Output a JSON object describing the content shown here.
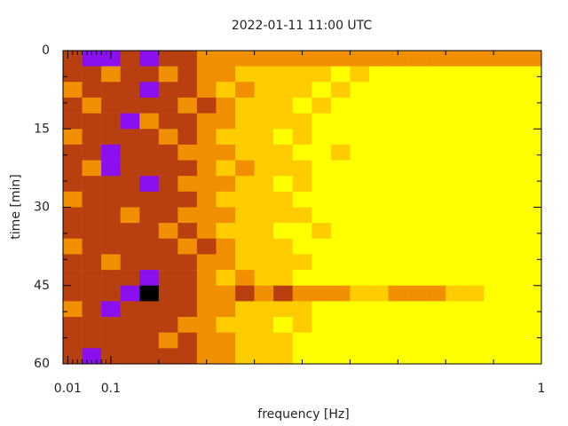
{
  "chart_data": {
    "type": "heatmap",
    "title": "2022-01-11 11:00 UTC",
    "x_label": "frequency [Hz]",
    "y_label": "time [min]",
    "xlim": [
      0,
      1
    ],
    "ylim": [
      0,
      60
    ],
    "y_inverted": true,
    "xticks": [
      0.01,
      0.1,
      1
    ],
    "xminor_ticks": [
      0.02,
      0.03,
      0.04,
      0.05,
      0.06,
      0.07,
      0.08,
      0.09,
      0.2,
      0.3,
      0.4,
      0.5,
      0.6,
      0.7,
      0.8,
      0.9
    ],
    "yticks": [
      0,
      15,
      30,
      45,
      60
    ],
    "yminor_ticks": [
      5,
      10,
      20,
      25,
      35,
      40,
      50,
      55
    ],
    "xbins": [
      0,
      0.04,
      0.08,
      0.12,
      0.16,
      0.2,
      0.24,
      0.28,
      0.32,
      0.36,
      0.4,
      0.44,
      0.48,
      0.52,
      0.56,
      0.6,
      0.64,
      0.68,
      0.72,
      0.76,
      0.8,
      0.84,
      0.88,
      0.92,
      0.96,
      1
    ],
    "ybins": [
      0,
      3,
      6,
      9,
      12,
      15,
      18,
      21,
      24,
      27,
      30,
      33,
      36,
      39,
      42,
      45,
      48,
      51,
      54,
      57,
      60
    ],
    "zlim": [
      0,
      5
    ],
    "colorscale": [
      "#ffff00",
      "#ffcc00",
      "#f09000",
      "#b84010",
      "#8a10f0",
      "#000000"
    ],
    "z": [
      [
        3,
        4,
        4,
        3,
        4,
        3,
        3,
        2,
        2,
        2,
        2,
        2,
        2,
        2,
        2,
        2,
        2,
        2,
        2,
        2,
        2,
        2,
        2,
        2,
        2
      ],
      [
        3,
        3,
        2,
        3,
        3,
        2,
        3,
        2,
        2,
        1,
        1,
        1,
        1,
        1,
        0,
        1,
        0,
        0,
        0,
        0,
        0,
        0,
        0,
        0,
        0
      ],
      [
        2,
        3,
        3,
        3,
        4,
        3,
        3,
        2,
        1,
        2,
        1,
        1,
        1,
        0,
        1,
        0,
        0,
        0,
        0,
        0,
        0,
        0,
        0,
        0,
        0
      ],
      [
        3,
        2,
        3,
        3,
        3,
        3,
        2,
        3,
        2,
        1,
        1,
        1,
        0,
        1,
        0,
        0,
        0,
        0,
        0,
        0,
        0,
        0,
        0,
        0,
        0
      ],
      [
        3,
        3,
        3,
        4,
        2,
        3,
        3,
        2,
        2,
        1,
        1,
        1,
        1,
        0,
        0,
        0,
        0,
        0,
        0,
        0,
        0,
        0,
        0,
        0,
        0
      ],
      [
        2,
        3,
        3,
        3,
        3,
        2,
        3,
        2,
        1,
        1,
        1,
        0,
        1,
        0,
        0,
        0,
        0,
        0,
        0,
        0,
        0,
        0,
        0,
        0,
        0
      ],
      [
        3,
        3,
        4,
        3,
        3,
        3,
        2,
        2,
        2,
        1,
        1,
        1,
        0,
        0,
        1,
        0,
        0,
        0,
        0,
        0,
        0,
        0,
        0,
        0,
        0
      ],
      [
        3,
        2,
        4,
        3,
        3,
        3,
        3,
        2,
        1,
        2,
        1,
        1,
        1,
        0,
        0,
        0,
        0,
        0,
        0,
        0,
        0,
        0,
        0,
        0,
        0
      ],
      [
        3,
        3,
        3,
        3,
        4,
        3,
        2,
        2,
        2,
        1,
        1,
        0,
        1,
        0,
        0,
        0,
        0,
        0,
        0,
        0,
        0,
        0,
        0,
        0,
        0
      ],
      [
        2,
        3,
        3,
        3,
        3,
        3,
        3,
        2,
        1,
        1,
        1,
        1,
        0,
        0,
        0,
        0,
        0,
        0,
        0,
        0,
        0,
        0,
        0,
        0,
        0
      ],
      [
        3,
        3,
        3,
        2,
        3,
        3,
        2,
        2,
        2,
        1,
        1,
        1,
        1,
        0,
        0,
        0,
        0,
        0,
        0,
        0,
        0,
        0,
        0,
        0,
        0
      ],
      [
        3,
        3,
        3,
        3,
        3,
        2,
        3,
        2,
        1,
        1,
        1,
        0,
        0,
        1,
        0,
        0,
        0,
        0,
        0,
        0,
        0,
        0,
        0,
        0,
        0
      ],
      [
        2,
        3,
        3,
        3,
        3,
        3,
        2,
        3,
        2,
        1,
        1,
        1,
        0,
        0,
        0,
        0,
        0,
        0,
        0,
        0,
        0,
        0,
        0,
        0,
        0
      ],
      [
        3,
        3,
        2,
        3,
        3,
        3,
        3,
        2,
        2,
        1,
        1,
        1,
        1,
        0,
        0,
        0,
        0,
        0,
        0,
        0,
        0,
        0,
        0,
        0,
        0
      ],
      [
        3,
        3,
        3,
        3,
        4,
        3,
        3,
        2,
        1,
        2,
        1,
        1,
        0,
        0,
        0,
        0,
        0,
        0,
        0,
        0,
        0,
        0,
        0,
        0,
        0
      ],
      [
        3,
        3,
        3,
        4,
        5,
        3,
        3,
        2,
        2,
        3,
        2,
        3,
        2,
        2,
        2,
        1,
        1,
        2,
        2,
        2,
        1,
        1,
        0,
        0,
        0
      ],
      [
        2,
        3,
        4,
        3,
        3,
        3,
        3,
        2,
        2,
        1,
        1,
        1,
        1,
        0,
        0,
        0,
        0,
        0,
        0,
        0,
        0,
        0,
        0,
        0,
        0
      ],
      [
        3,
        3,
        3,
        3,
        3,
        3,
        2,
        2,
        1,
        1,
        1,
        0,
        1,
        0,
        0,
        0,
        0,
        0,
        0,
        0,
        0,
        0,
        0,
        0,
        0
      ],
      [
        3,
        3,
        3,
        3,
        3,
        2,
        3,
        2,
        2,
        1,
        1,
        1,
        0,
        0,
        0,
        0,
        0,
        0,
        0,
        0,
        0,
        0,
        0,
        0,
        0
      ],
      [
        3,
        4,
        3,
        3,
        3,
        3,
        3,
        2,
        2,
        1,
        1,
        1,
        0,
        0,
        0,
        0,
        0,
        0,
        0,
        0,
        0,
        0,
        0,
        0,
        0
      ]
    ]
  }
}
